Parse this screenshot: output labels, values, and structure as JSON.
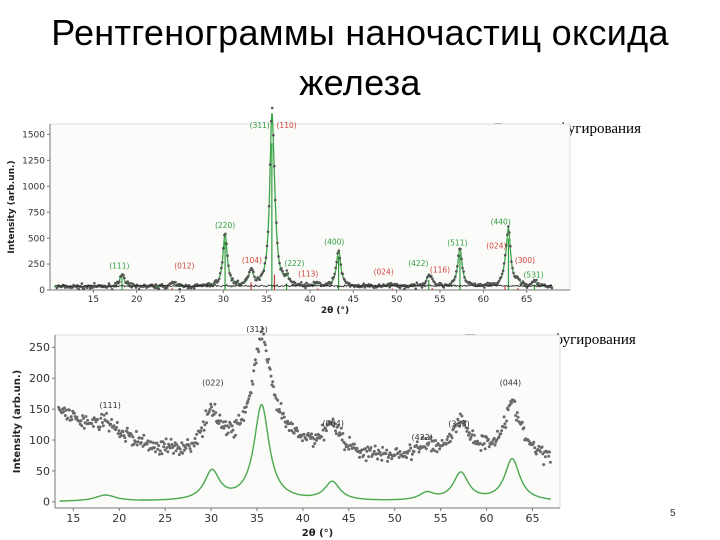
{
  "slide": {
    "title": "Рентгенограммы наночастиц оксида железа",
    "label_before": "До центрифугирования",
    "label_after": "После центрифугирования",
    "page_number": "5"
  },
  "chart_data": [
    {
      "type": "line",
      "ylabel": "Intensity (arb.un.)",
      "xlabel": "2θ (°)",
      "xlim": [
        10,
        70
      ],
      "ylim": [
        0,
        1600
      ],
      "xticks": [
        15,
        20,
        25,
        30,
        35,
        40,
        45,
        50,
        55,
        60,
        65
      ],
      "yticks": [
        0,
        250,
        500,
        750,
        1000,
        1250,
        1500
      ],
      "baseline": 30,
      "peaks": [
        {
          "x": 18.3,
          "h": 130,
          "label": "(111)",
          "color": "#2e9e3e",
          "lx": 18.0,
          "ly": 205
        },
        {
          "x": 24.1,
          "h": 40,
          "label": "(012)",
          "color": "#d0433a",
          "lx": 25.5,
          "ly": 205
        },
        {
          "x": 30.2,
          "h": 520,
          "label": "(220)",
          "color": "#2e9e3e",
          "lx": 30.2,
          "ly": 600
        },
        {
          "x": 33.2,
          "h": 150,
          "label": "(104)",
          "color": "#d0433a",
          "lx": 33.3,
          "ly": 260
        },
        {
          "x": 35.6,
          "h": 1570,
          "label": "(311)",
          "color": "#2e9e3e",
          "lx": 34.2,
          "ly": 1560
        },
        {
          "x": 35.9,
          "h": 300,
          "label": "(110)",
          "color": "#d0433a",
          "lx": 37.3,
          "ly": 1560
        },
        {
          "x": 37.3,
          "h": 70,
          "label": "(222)",
          "color": "#2e9e3e",
          "lx": 38.2,
          "ly": 230
        },
        {
          "x": 40.9,
          "h": 30,
          "label": "(113)",
          "color": "#d0433a",
          "lx": 39.8,
          "ly": 130
        },
        {
          "x": 43.3,
          "h": 360,
          "label": "(400)",
          "color": "#2e9e3e",
          "lx": 42.8,
          "ly": 440
        },
        {
          "x": 49.5,
          "h": 30,
          "label": "(024)",
          "color": "#d0433a",
          "lx": 48.5,
          "ly": 150
        },
        {
          "x": 53.7,
          "h": 110,
          "label": "(422)",
          "color": "#2e9e3e",
          "lx": 52.5,
          "ly": 230
        },
        {
          "x": 54.1,
          "h": 40,
          "label": "(116)",
          "color": "#d0433a",
          "lx": 55.0,
          "ly": 170
        },
        {
          "x": 57.3,
          "h": 380,
          "label": "(511)",
          "color": "#2e9e3e",
          "lx": 57.0,
          "ly": 430
        },
        {
          "x": 62.5,
          "h": 80,
          "label": "(024)",
          "color": "#d0433a",
          "lx": 61.5,
          "ly": 400
        },
        {
          "x": 62.9,
          "h": 550,
          "label": "(440)",
          "color": "#2e9e3e",
          "lx": 62.0,
          "ly": 630
        },
        {
          "x": 64.0,
          "h": 40,
          "label": "(300)",
          "color": "#d0433a",
          "lx": 64.8,
          "ly": 260
        },
        {
          "x": 65.9,
          "h": 50,
          "label": "(531)",
          "color": "#2e9e3e",
          "lx": 65.8,
          "ly": 120
        }
      ]
    },
    {
      "type": "line",
      "ylabel": "Intensity (arb.un.)",
      "xlabel": "2θ (°)",
      "xlim": [
        13,
        68
      ],
      "ylim": [
        -10,
        270
      ],
      "xticks": [
        15,
        20,
        25,
        30,
        35,
        40,
        45,
        50,
        55,
        60,
        65
      ],
      "yticks": [
        0,
        50,
        100,
        150,
        200,
        250
      ],
      "background": [
        [
          13,
          150
        ],
        [
          16,
          125
        ],
        [
          20,
          105
        ],
        [
          24,
          85
        ],
        [
          28,
          78
        ],
        [
          32,
          88
        ],
        [
          36,
          118
        ],
        [
          40,
          90
        ],
        [
          44,
          78
        ],
        [
          48,
          72
        ],
        [
          52,
          72
        ],
        [
          56,
          76
        ],
        [
          60,
          78
        ],
        [
          64,
          75
        ],
        [
          68,
          65
        ]
      ],
      "peaks": [
        {
          "x": 18.5,
          "h": 10,
          "w": 1.4,
          "ph": 15,
          "label": "(111)",
          "lx": 19.0,
          "ly": 152
        },
        {
          "x": 30.1,
          "h": 47,
          "w": 1.0,
          "ph": 60,
          "label": "(022)",
          "lx": 30.2,
          "ly": 188
        },
        {
          "x": 35.5,
          "h": 155,
          "w": 1.0,
          "ph": 150,
          "label": "(311)",
          "lx": 35.0,
          "ly": 275
        },
        {
          "x": 43.2,
          "h": 30,
          "w": 1.0,
          "ph": 45,
          "label": "(004)",
          "lx": 43.3,
          "ly": 123
        },
        {
          "x": 53.5,
          "h": 12,
          "w": 1.0,
          "ph": 15,
          "label": "(422)",
          "lx": 53.0,
          "ly": 100
        },
        {
          "x": 57.2,
          "h": 45,
          "w": 1.0,
          "ph": 50,
          "label": "(333)",
          "lx": 57.0,
          "ly": 122
        },
        {
          "x": 62.8,
          "h": 68,
          "w": 1.0,
          "ph": 80,
          "label": "(044)",
          "lx": 62.6,
          "ly": 188
        }
      ]
    }
  ]
}
